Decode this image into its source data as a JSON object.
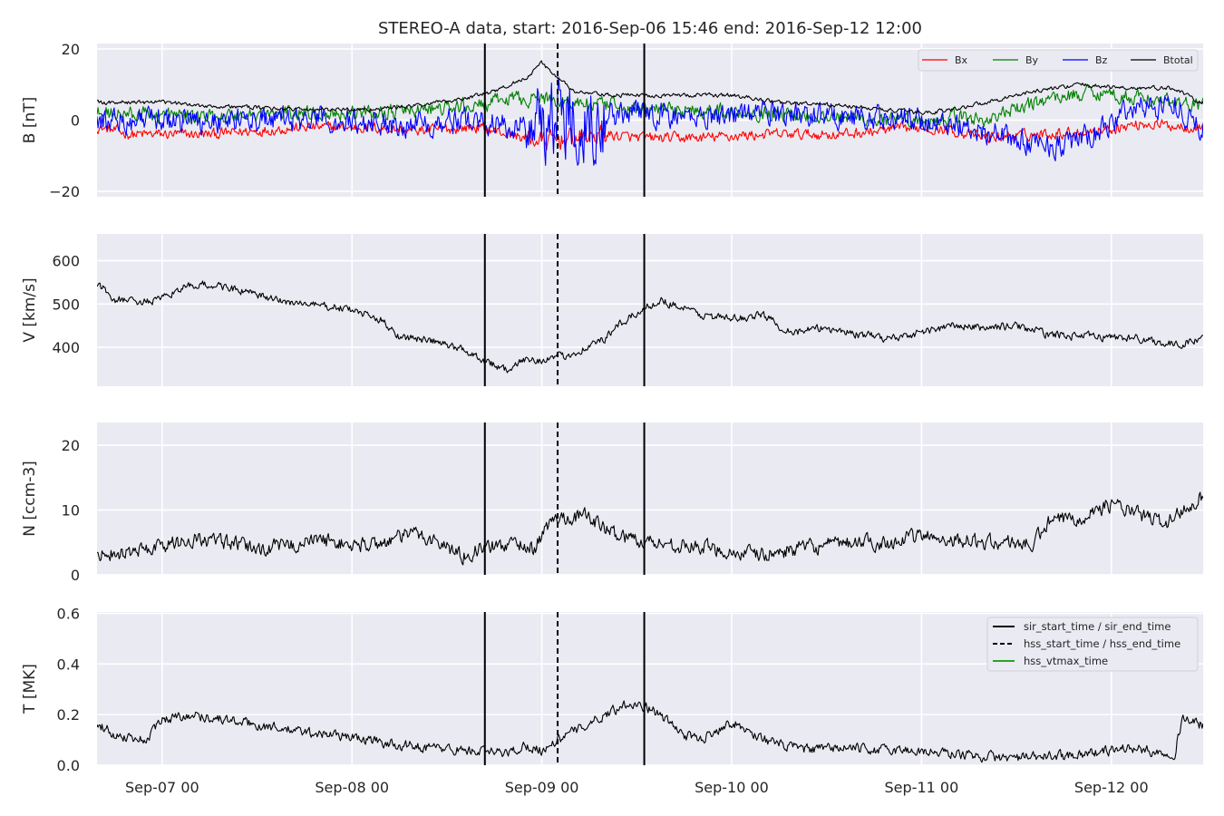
{
  "title": "STEREO-A data, start: 2016-Sep-06 15:46  end: 2016-Sep-12 12:00",
  "colors": {
    "panel_bg": "#EAEAF2",
    "grid": "#FFFFFF",
    "bx": "#FF0000",
    "by": "#008000",
    "bz": "#0000FF",
    "btotal": "#000000",
    "data": "#000000",
    "vtmax": "#2CA02C"
  },
  "chart_data": [
    {
      "type": "line",
      "ylabel": "B [nT]",
      "yticks": [
        -20,
        0,
        20
      ],
      "ylim": [
        -21.5,
        21.5
      ],
      "xlim_hours": [
        -8.23,
        131.6
      ],
      "x_tick_labels": [
        "Sep-07 00",
        "Sep-08 00",
        "Sep-09 00",
        "Sep-10 00",
        "Sep-11 00",
        "Sep-12 00"
      ],
      "x_tick_hours": [
        0,
        24,
        48,
        72,
        96,
        120
      ],
      "grid": true,
      "legend_position": "top-right",
      "series": [
        {
          "name": "Bx",
          "color_key": "bx",
          "base": [
            [
              -8,
              -2
            ],
            [
              -4,
              -4
            ],
            [
              6,
              -4
            ],
            [
              18,
              -2
            ],
            [
              26,
              -2
            ],
            [
              32,
              -3
            ],
            [
              40,
              -2
            ],
            [
              44,
              -4
            ],
            [
              48,
              -6
            ],
            [
              52,
              -5
            ],
            [
              56,
              -4
            ],
            [
              60,
              -5
            ],
            [
              68,
              -5
            ],
            [
              76,
              -4
            ],
            [
              86,
              -4
            ],
            [
              96,
              -2
            ],
            [
              100,
              -3
            ],
            [
              104,
              -5
            ],
            [
              110,
              -4
            ],
            [
              118,
              -3
            ],
            [
              124,
              -1
            ],
            [
              131,
              -2
            ]
          ],
          "noise": 1.3
        },
        {
          "name": "By",
          "color_key": "by",
          "base": [
            [
              -8,
              2
            ],
            [
              6,
              1
            ],
            [
              18,
              2
            ],
            [
              26,
              2
            ],
            [
              34,
              3
            ],
            [
              40,
              4
            ],
            [
              44,
              6
            ],
            [
              48,
              6
            ],
            [
              52,
              5
            ],
            [
              56,
              4
            ],
            [
              60,
              3
            ],
            [
              66,
              3
            ],
            [
              76,
              2
            ],
            [
              86,
              1
            ],
            [
              96,
              -1
            ],
            [
              100,
              1
            ],
            [
              104,
              0
            ],
            [
              108,
              3
            ],
            [
              112,
              6
            ],
            [
              118,
              8
            ],
            [
              124,
              6
            ],
            [
              131,
              4
            ]
          ],
          "noise": 1.8
        },
        {
          "name": "Bz",
          "color_key": "bz",
          "base": [
            [
              -8,
              0
            ],
            [
              6,
              0
            ],
            [
              18,
              0
            ],
            [
              30,
              -1
            ],
            [
              40,
              0
            ],
            [
              44,
              -2
            ],
            [
              48,
              0
            ],
            [
              52,
              2
            ],
            [
              56,
              1
            ],
            [
              60,
              2
            ],
            [
              66,
              1
            ],
            [
              76,
              2
            ],
            [
              86,
              1
            ],
            [
              96,
              0
            ],
            [
              100,
              -1
            ],
            [
              104,
              -3
            ],
            [
              108,
              -6
            ],
            [
              114,
              -7
            ],
            [
              118,
              -4
            ],
            [
              122,
              3
            ],
            [
              128,
              5
            ],
            [
              131,
              -2
            ]
          ],
          "noise": 3.0
        },
        {
          "name": "Btotal",
          "color_key": "btotal",
          "base": [
            [
              -8,
              5
            ],
            [
              0,
              5
            ],
            [
              6,
              4
            ],
            [
              18,
              3
            ],
            [
              26,
              3
            ],
            [
              32,
              4
            ],
            [
              38,
              6
            ],
            [
              42,
              8
            ],
            [
              46,
              12
            ],
            [
              48,
              16
            ],
            [
              50,
              12
            ],
            [
              52,
              8
            ],
            [
              56,
              7
            ],
            [
              60,
              7
            ],
            [
              66,
              7
            ],
            [
              72,
              7
            ],
            [
              78,
              5
            ],
            [
              86,
              4
            ],
            [
              96,
              2
            ],
            [
              100,
              3
            ],
            [
              104,
              5
            ],
            [
              110,
              8
            ],
            [
              116,
              10
            ],
            [
              122,
              9
            ],
            [
              128,
              9
            ],
            [
              131,
              5
            ]
          ],
          "noise": 0.5
        }
      ]
    },
    {
      "type": "line",
      "ylabel": "V [km/s]",
      "yticks": [
        400,
        500,
        600
      ],
      "ylim": [
        310,
        662
      ],
      "series": [
        {
          "name": "",
          "color_key": "data",
          "base": [
            [
              -8,
              545
            ],
            [
              -6,
              510
            ],
            [
              -2,
              505
            ],
            [
              0,
              510
            ],
            [
              2,
              535
            ],
            [
              5,
              545
            ],
            [
              8,
              540
            ],
            [
              11,
              525
            ],
            [
              14,
              510
            ],
            [
              18,
              500
            ],
            [
              23,
              490
            ],
            [
              25,
              480
            ],
            [
              28,
              460
            ],
            [
              30,
              425
            ],
            [
              34,
              415
            ],
            [
              38,
              395
            ],
            [
              42,
              360
            ],
            [
              44,
              345
            ],
            [
              46,
              375
            ],
            [
              48,
              370
            ],
            [
              51,
              380
            ],
            [
              53,
              395
            ],
            [
              56,
              420
            ],
            [
              58,
              455
            ],
            [
              61,
              490
            ],
            [
              63,
              510
            ],
            [
              66,
              490
            ],
            [
              68,
              475
            ],
            [
              72,
              465
            ],
            [
              76,
              475
            ],
            [
              78,
              450
            ],
            [
              80,
              435
            ],
            [
              84,
              445
            ],
            [
              88,
              430
            ],
            [
              92,
              420
            ],
            [
              96,
              435
            ],
            [
              100,
              450
            ],
            [
              104,
              445
            ],
            [
              108,
              450
            ],
            [
              112,
              430
            ],
            [
              118,
              425
            ],
            [
              124,
              420
            ],
            [
              128,
              405
            ],
            [
              131,
              418
            ]
          ],
          "noise": 8
        }
      ]
    },
    {
      "type": "line",
      "ylabel": "N [ccm-3]",
      "yticks": [
        0,
        10,
        20
      ],
      "ylim": [
        0,
        23.5
      ],
      "series": [
        {
          "name": "",
          "color_key": "data",
          "base": [
            [
              -8,
              3.5
            ],
            [
              -4,
              3.5
            ],
            [
              0,
              4.5
            ],
            [
              4,
              5.5
            ],
            [
              8,
              5
            ],
            [
              12,
              4
            ],
            [
              16,
              4.5
            ],
            [
              20,
              5.5
            ],
            [
              24,
              4.5
            ],
            [
              28,
              5
            ],
            [
              32,
              6.5
            ],
            [
              35,
              5
            ],
            [
              38,
              3
            ],
            [
              40,
              4
            ],
            [
              43,
              4.5
            ],
            [
              45,
              5
            ],
            [
              47,
              4
            ],
            [
              49,
              8
            ],
            [
              51,
              9
            ],
            [
              54,
              9
            ],
            [
              56,
              7
            ],
            [
              58,
              6
            ],
            [
              62,
              5
            ],
            [
              66,
              4.5
            ],
            [
              70,
              4
            ],
            [
              72,
              3.5
            ],
            [
              76,
              3
            ],
            [
              80,
              4
            ],
            [
              84,
              4.5
            ],
            [
              88,
              5
            ],
            [
              92,
              5
            ],
            [
              96,
              6
            ],
            [
              100,
              5.5
            ],
            [
              104,
              5
            ],
            [
              108,
              5
            ],
            [
              110,
              4.5
            ],
            [
              112,
              8
            ],
            [
              116,
              9
            ],
            [
              120,
              11
            ],
            [
              124,
              9
            ],
            [
              127,
              8
            ],
            [
              131,
              12
            ]
          ],
          "noise": 1.0
        }
      ]
    },
    {
      "type": "line",
      "ylabel": "T [MK]",
      "yticks": [
        0.0,
        0.2,
        0.4,
        0.6
      ],
      "ylim": [
        0,
        0.605
      ],
      "series": [
        {
          "name": "",
          "color_key": "data",
          "base": [
            [
              -8,
              0.16
            ],
            [
              -6,
              0.12
            ],
            [
              -2,
              0.1
            ],
            [
              0,
              0.18
            ],
            [
              3,
              0.2
            ],
            [
              6,
              0.19
            ],
            [
              10,
              0.17
            ],
            [
              14,
              0.15
            ],
            [
              18,
              0.13
            ],
            [
              22,
              0.12
            ],
            [
              26,
              0.1
            ],
            [
              30,
              0.08
            ],
            [
              34,
              0.07
            ],
            [
              38,
              0.06
            ],
            [
              42,
              0.05
            ],
            [
              44,
              0.05
            ],
            [
              46,
              0.08
            ],
            [
              48,
              0.06
            ],
            [
              50,
              0.1
            ],
            [
              53,
              0.15
            ],
            [
              56,
              0.2
            ],
            [
              59,
              0.25
            ],
            [
              62,
              0.22
            ],
            [
              64,
              0.17
            ],
            [
              66,
              0.12
            ],
            [
              68,
              0.1
            ],
            [
              70,
              0.14
            ],
            [
              72,
              0.17
            ],
            [
              75,
              0.12
            ],
            [
              78,
              0.08
            ],
            [
              82,
              0.06
            ],
            [
              86,
              0.07
            ],
            [
              90,
              0.06
            ],
            [
              94,
              0.06
            ],
            [
              98,
              0.05
            ],
            [
              102,
              0.04
            ],
            [
              106,
              0.03
            ],
            [
              110,
              0.03
            ],
            [
              114,
              0.04
            ],
            [
              118,
              0.05
            ],
            [
              122,
              0.07
            ],
            [
              126,
              0.05
            ],
            [
              128,
              0.05
            ],
            [
              129,
              0.19
            ],
            [
              131,
              0.16
            ]
          ],
          "noise": 0.017
        }
      ]
    }
  ],
  "markers": {
    "sir_start_hours": 40.8,
    "hss_start_hours": 50.0,
    "sir_end_hours": 60.95
  },
  "legend_bottom": [
    {
      "label": "sir_start_time / sir_end_time",
      "style": "solid"
    },
    {
      "label": "hss_start_time / hss_end_time",
      "style": "dashed"
    },
    {
      "label": "hss_vtmax_time",
      "style": "green"
    }
  ]
}
